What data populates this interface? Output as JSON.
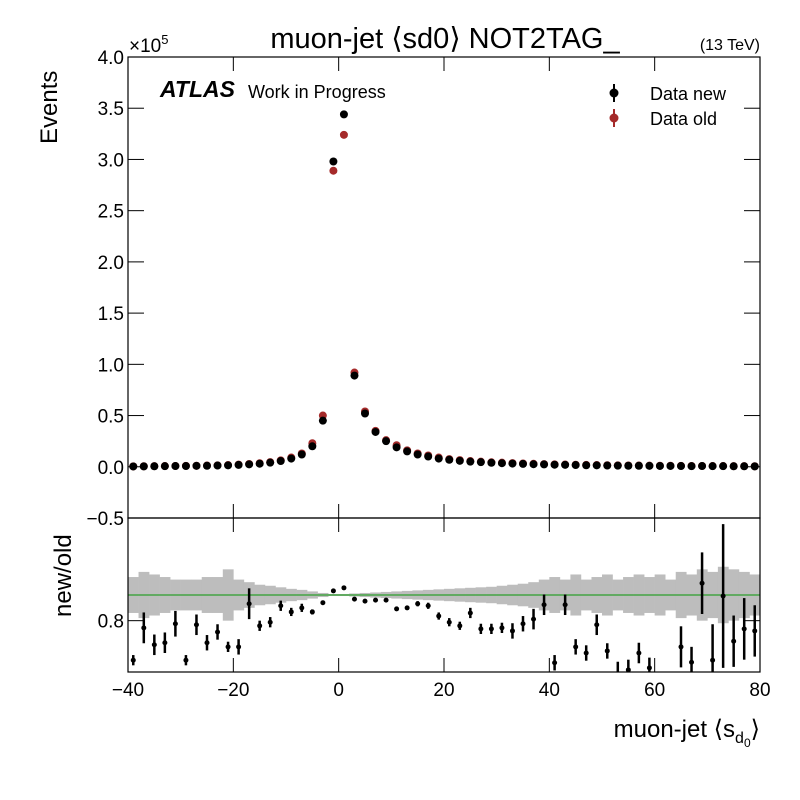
{
  "chart_data": {
    "type": "scatter",
    "title": "muon-jet ⟨sd0⟩ NOT2TAG_",
    "energy": "(13 TeV)",
    "experiment": "ATLAS",
    "status": "Work in Progress",
    "y_multiplier": {
      "base": "×10",
      "exponent": "5"
    },
    "ylabel": "Events",
    "xlabel": {
      "text": "muon-jet ⟨s",
      "sub": "d",
      "subsub": "0",
      "close": "⟩"
    },
    "xlim": [
      -40,
      80
    ],
    "xticks": [
      {
        "value": -40,
        "label": "−40"
      },
      {
        "value": -20,
        "label": "−20"
      },
      0,
      20,
      40,
      60,
      80
    ],
    "ylim": [
      -0.5,
      4.0
    ],
    "yticks": [
      {
        "value": -0.5,
        "label": "−0.5"
      },
      {
        "value": 0,
        "label": "0.0"
      },
      0.5,
      {
        "value": 1,
        "label": "1.0"
      },
      1.5,
      {
        "value": 2,
        "label": "2.0"
      },
      2.5,
      {
        "value": 3,
        "label": "3.0"
      },
      3.5,
      {
        "value": 4,
        "label": "4.0"
      }
    ],
    "legend_position": "upper right",
    "x": [
      -39,
      -37,
      -35,
      -33,
      -31,
      -29,
      -27,
      -25,
      -23,
      -21,
      -19,
      -17,
      -15,
      -13,
      -11,
      -9,
      -7,
      -5,
      -3,
      -1,
      1,
      3,
      5,
      7,
      9,
      11,
      13,
      15,
      17,
      19,
      21,
      23,
      25,
      27,
      29,
      31,
      33,
      35,
      37,
      39,
      41,
      43,
      45,
      47,
      49,
      51,
      53,
      55,
      57,
      59,
      61,
      63,
      65,
      67,
      69,
      71,
      73,
      75,
      77,
      79
    ],
    "series": [
      {
        "name": "Data new",
        "color": "#000000",
        "values": [
          0.003,
          0.004,
          0.005,
          0.006,
          0.007,
          0.007,
          0.009,
          0.01,
          0.012,
          0.014,
          0.018,
          0.024,
          0.03,
          0.04,
          0.056,
          0.08,
          0.12,
          0.2,
          0.45,
          2.98,
          3.44,
          0.89,
          0.52,
          0.34,
          0.25,
          0.19,
          0.15,
          0.12,
          0.1,
          0.08,
          0.068,
          0.058,
          0.05,
          0.045,
          0.039,
          0.035,
          0.031,
          0.028,
          0.025,
          0.023,
          0.02,
          0.019,
          0.017,
          0.015,
          0.014,
          0.012,
          0.011,
          0.01,
          0.01,
          0.009,
          0.008,
          0.008,
          0.007,
          0.006,
          0.007,
          0.006,
          0.006,
          0.005,
          0.005,
          0.004
        ]
      },
      {
        "name": "Data old",
        "color": "#a52a2a",
        "values": [
          0.004,
          0.005,
          0.006,
          0.007,
          0.008,
          0.009,
          0.01,
          0.012,
          0.014,
          0.017,
          0.021,
          0.027,
          0.035,
          0.046,
          0.063,
          0.09,
          0.13,
          0.23,
          0.5,
          2.89,
          3.24,
          0.92,
          0.54,
          0.35,
          0.26,
          0.21,
          0.16,
          0.13,
          0.11,
          0.09,
          0.075,
          0.065,
          0.056,
          0.05,
          0.044,
          0.04,
          0.036,
          0.032,
          0.029,
          0.026,
          0.024,
          0.022,
          0.02,
          0.018,
          0.017,
          0.015,
          0.014,
          0.013,
          0.012,
          0.011,
          0.01,
          0.01,
          0.009,
          0.008,
          0.008,
          0.007,
          0.007,
          0.006,
          0.006,
          0.005
        ]
      }
    ],
    "ratio": {
      "ylabel": "new/old",
      "ylim": [
        0.7,
        1.0
      ],
      "yticks": [
        0.8
      ],
      "reference_line": 0.85,
      "reference_color": "#2ca02c",
      "band_color": "#bdbdbd",
      "band_halfwidth": [
        0.035,
        0.045,
        0.04,
        0.035,
        0.03,
        0.03,
        0.03,
        0.035,
        0.035,
        0.05,
        0.03,
        0.025,
        0.02,
        0.018,
        0.015,
        0.012,
        0.01,
        0.007,
        0.004,
        0.002,
        0.002,
        0.003,
        0.004,
        0.005,
        0.006,
        0.007,
        0.008,
        0.009,
        0.01,
        0.011,
        0.012,
        0.013,
        0.014,
        0.015,
        0.016,
        0.018,
        0.02,
        0.022,
        0.025,
        0.03,
        0.035,
        0.03,
        0.04,
        0.03,
        0.035,
        0.04,
        0.03,
        0.035,
        0.04,
        0.035,
        0.04,
        0.03,
        0.045,
        0.04,
        0.05,
        0.045,
        0.055,
        0.05,
        0.045,
        0.04
      ],
      "color": "#000000",
      "values": [
        0.723,
        0.786,
        0.753,
        0.757,
        0.794,
        0.723,
        0.792,
        0.757,
        0.778,
        0.749,
        0.749,
        0.833,
        0.79,
        0.797,
        0.829,
        0.817,
        0.825,
        0.817,
        0.835,
        0.858,
        0.864,
        0.842,
        0.838,
        0.84,
        0.84,
        0.823,
        0.825,
        0.833,
        0.829,
        0.809,
        0.797,
        0.79,
        0.815,
        0.784,
        0.784,
        0.786,
        0.78,
        0.794,
        0.803,
        0.831,
        0.718,
        0.831,
        0.749,
        0.737,
        0.792,
        0.741,
        0.69,
        0.704,
        0.737,
        0.708,
        0.67,
        0.67,
        0.749,
        0.719,
        0.873,
        0.723,
        0.848,
        0.76,
        0.784,
        0.78
      ],
      "errors": [
        0.01,
        0.03,
        0.02,
        0.02,
        0.025,
        0.01,
        0.02,
        0.015,
        0.015,
        0.01,
        0.015,
        0.03,
        0.01,
        0.01,
        0.01,
        0.008,
        0.008,
        0.005,
        0.003,
        0.002,
        0.002,
        0.002,
        0.003,
        0.003,
        0.003,
        0.004,
        0.004,
        0.005,
        0.006,
        0.007,
        0.008,
        0.008,
        0.01,
        0.01,
        0.01,
        0.01,
        0.015,
        0.015,
        0.02,
        0.02,
        0.015,
        0.02,
        0.015,
        0.015,
        0.02,
        0.015,
        0.03,
        0.02,
        0.02,
        0.02,
        0.03,
        0.03,
        0.04,
        0.03,
        0.06,
        0.07,
        0.14,
        0.05,
        0.06,
        0.05
      ]
    }
  }
}
